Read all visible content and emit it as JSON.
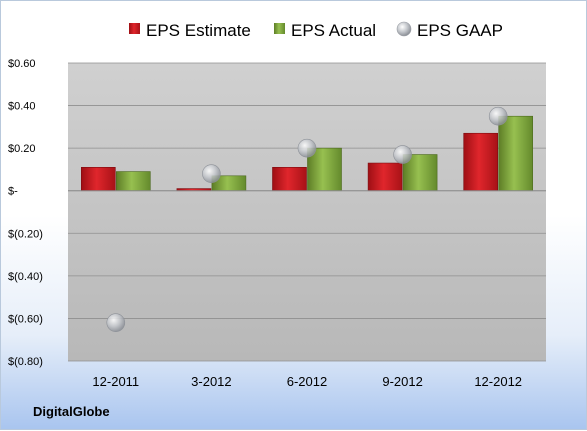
{
  "chart_data": {
    "type": "bar",
    "title": "",
    "xlabel": "",
    "ylabel": "",
    "categories": [
      "12-2011",
      "3-2012",
      "6-2012",
      "9-2012",
      "12-2012"
    ],
    "series": [
      {
        "name": "EPS Estimate",
        "type": "bar",
        "color": "#c8161d",
        "values": [
          0.11,
          0.01,
          0.11,
          0.13,
          0.27
        ]
      },
      {
        "name": "EPS Actual",
        "type": "bar",
        "color": "#7aa03a",
        "values": [
          0.09,
          0.07,
          0.2,
          0.17,
          0.35
        ]
      },
      {
        "name": "EPS GAAP",
        "type": "scatter",
        "color": "#b8bcc4",
        "values": [
          -0.62,
          0.08,
          0.2,
          0.17,
          0.35
        ]
      }
    ],
    "ylim": [
      -0.8,
      0.6
    ],
    "yticks": [
      0.6,
      0.4,
      0.2,
      0,
      -0.2,
      -0.4,
      -0.6,
      -0.8
    ],
    "ytick_labels": [
      "$0.60",
      "$0.40",
      "$0.20",
      "$-",
      "$(0.20)",
      "$(0.40)",
      "$(0.60)",
      "$(0.80)"
    ],
    "grid": true,
    "legend_position": "top-center"
  },
  "footer": {
    "company": "DigitalGlobe"
  }
}
